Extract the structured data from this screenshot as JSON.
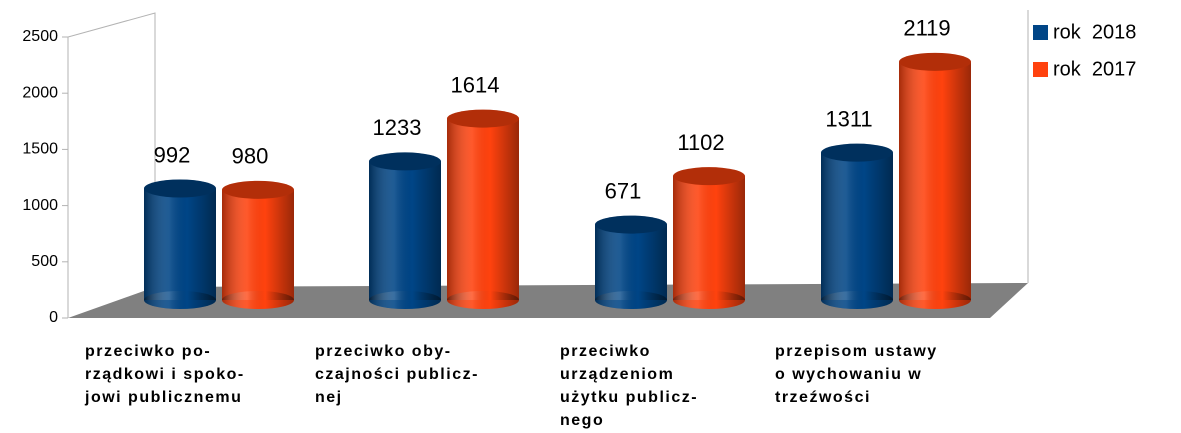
{
  "chart_data": {
    "type": "bar",
    "categories": [
      "przeciwko po-\nrządkowi i spoko-\njowi publicznemu",
      "przeciwko oby-\nczajności publicz-\nnej",
      "przeciwko\nurządzeniom\nużytku publicz-\nnego",
      "przepisom ustawy\no wychowaniu w\ntrzeźwości"
    ],
    "series": [
      {
        "name": "rok  2018",
        "color": "#004586",
        "values": [
          992,
          1233,
          671,
          1311
        ]
      },
      {
        "name": "rok  2017",
        "color": "#ff420e",
        "values": [
          980,
          1614,
          1102,
          2119
        ]
      }
    ],
    "ylim": [
      0,
      2500
    ],
    "yticks": [
      0,
      500,
      1000,
      1500,
      2000,
      2500
    ],
    "legend": "right"
  }
}
